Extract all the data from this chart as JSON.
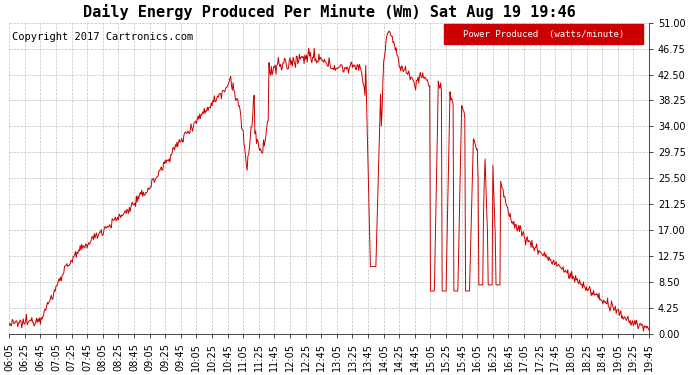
{
  "title": "Daily Energy Produced Per Minute (Wm) Sat Aug 19 19:46",
  "copyright": "Copyright 2017 Cartronics.com",
  "legend_label": "Power Produced  (watts/minute)",
  "legend_bg": "#cc0000",
  "legend_text_color": "#ffffff",
  "line_color": "#cc0000",
  "background_color": "#ffffff",
  "grid_color": "#bbbbbb",
  "yticks": [
    0.0,
    4.25,
    8.5,
    12.75,
    17.0,
    21.25,
    25.5,
    29.75,
    34.0,
    38.25,
    42.5,
    46.75,
    51.0
  ],
  "ylim": [
    0,
    51.0
  ],
  "xtick_labels": [
    "06:05",
    "06:25",
    "06:45",
    "07:05",
    "07:25",
    "07:45",
    "08:05",
    "08:25",
    "08:45",
    "09:05",
    "09:25",
    "09:45",
    "10:05",
    "10:25",
    "10:45",
    "11:05",
    "11:25",
    "11:45",
    "12:05",
    "12:25",
    "12:45",
    "13:05",
    "13:25",
    "13:45",
    "14:05",
    "14:25",
    "14:45",
    "15:05",
    "15:25",
    "15:45",
    "16:05",
    "16:25",
    "16:45",
    "17:05",
    "17:25",
    "17:45",
    "18:05",
    "18:25",
    "18:45",
    "19:05",
    "19:25",
    "19:45"
  ],
  "title_fontsize": 11,
  "tick_fontsize": 7,
  "copyright_fontsize": 7.5
}
